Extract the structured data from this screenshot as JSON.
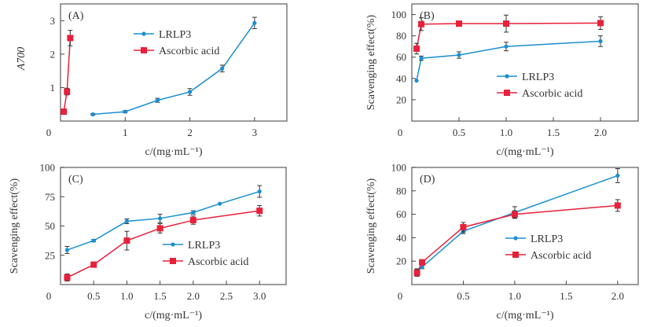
{
  "chart_data": [
    {
      "type": "line",
      "panel": "(A)",
      "xlabel": "c/(mg·mL⁻¹)",
      "ylabel": "A700",
      "xlim": [
        0,
        3.5
      ],
      "ylim": [
        0,
        3.5
      ],
      "xticks": [
        1,
        2,
        3
      ],
      "xtick_labels": [
        "1",
        "2",
        "3"
      ],
      "yticks": [
        1,
        2,
        3
      ],
      "ytick_labels": [
        "1",
        "2",
        "3"
      ],
      "origin_label": "0",
      "legend_position": "top-center",
      "series": [
        {
          "name": "LRLP3",
          "color": "#1a8fd0",
          "marker": "diamond",
          "x": [
            0.5,
            1.0,
            1.5,
            2.0,
            2.5,
            3.0
          ],
          "y": [
            0.2,
            0.28,
            0.62,
            0.87,
            1.57,
            2.93
          ],
          "err": [
            0.02,
            0.03,
            0.06,
            0.1,
            0.1,
            0.17
          ]
        },
        {
          "name": "Ascorbic acid",
          "color": "#e8203a",
          "marker": "square",
          "x": [
            0.05,
            0.1,
            0.15
          ],
          "y": [
            0.28,
            0.88,
            2.48
          ],
          "err": [
            0.02,
            0.1,
            0.23
          ]
        }
      ]
    },
    {
      "type": "line",
      "panel": "(B)",
      "xlabel": "c/(mg·mL⁻¹)",
      "ylabel": "Scavenging effect(%)",
      "xlim": [
        0,
        2.4
      ],
      "ylim": [
        0,
        110
      ],
      "xticks": [
        0.5,
        1.0,
        1.5,
        2.0
      ],
      "xtick_labels": [
        "0.5",
        "1.0",
        "1.5",
        "2.0"
      ],
      "yticks": [
        20,
        40,
        60,
        80,
        100
      ],
      "ytick_labels": [
        "20",
        "40",
        "60",
        "80",
        "100"
      ],
      "origin_label": "0",
      "legend_position": "center-right",
      "series": [
        {
          "name": "LRLP3",
          "color": "#1a8fd0",
          "marker": "diamond",
          "x": [
            0.05,
            0.1,
            0.5,
            1.0,
            2.0
          ],
          "y": [
            38,
            59,
            62,
            70,
            75
          ],
          "err": [
            0,
            2,
            3,
            4,
            5
          ]
        },
        {
          "name": "Ascorbic acid",
          "color": "#e8203a",
          "marker": "square",
          "x": [
            0.05,
            0.1,
            0.5,
            1.0,
            2.0
          ],
          "y": [
            68,
            91,
            91.5,
            91.5,
            92
          ],
          "err": [
            5,
            6,
            2,
            8,
            6
          ]
        }
      ]
    },
    {
      "type": "line",
      "panel": "(C)",
      "xlabel": "c/(mg·mL⁻¹)",
      "ylabel": "Scavenging effect(%)",
      "xlim": [
        0,
        3.4
      ],
      "ylim": [
        0,
        100
      ],
      "xticks": [
        0.5,
        1.0,
        1.5,
        2.0,
        2.5,
        3.0
      ],
      "xtick_labels": [
        "0.5",
        "1.0",
        "1.5",
        "2.0",
        "2.5",
        "3.0"
      ],
      "yticks": [
        25,
        50,
        75,
        100
      ],
      "ytick_labels": [
        "25",
        "50",
        "75",
        "100"
      ],
      "origin_label": "0",
      "legend_position": "center-right",
      "series": [
        {
          "name": "LRLP3",
          "color": "#1a8fd0",
          "marker": "diamond",
          "x": [
            0.1,
            0.5,
            1.0,
            1.5,
            2.0,
            2.4,
            3.0
          ],
          "y": [
            29.5,
            37.5,
            54,
            56.5,
            61.5,
            69,
            79.5
          ],
          "err": [
            3,
            1,
            2,
            3.5,
            1.5,
            0,
            5
          ]
        },
        {
          "name": "Ascorbic acid",
          "color": "#e8203a",
          "marker": "square",
          "x": [
            0.1,
            0.5,
            1.0,
            1.5,
            2.0,
            3.0
          ],
          "y": [
            6,
            17,
            37.5,
            48,
            55,
            63
          ],
          "err": [
            3,
            1,
            8,
            4,
            3.5,
            4.5
          ]
        }
      ]
    },
    {
      "type": "line",
      "panel": "(D)",
      "xlabel": "c/(mg·mL⁻¹)",
      "ylabel": "Scavenging effect(%)",
      "xlim": [
        0,
        2.2
      ],
      "ylim": [
        0,
        100
      ],
      "xticks": [
        0.5,
        1.0,
        1.5,
        2.0
      ],
      "xtick_labels": [
        "0.5",
        "1.0",
        "1.5",
        "2.0"
      ],
      "yticks": [
        20,
        40,
        60,
        80,
        100
      ],
      "ytick_labels": [
        "20",
        "40",
        "60",
        "80",
        "100"
      ],
      "origin_label": "0",
      "legend_position": "center-right",
      "series": [
        {
          "name": "LRLP3",
          "color": "#1a8fd0",
          "marker": "diamond",
          "x": [
            0.05,
            0.1,
            0.5,
            1.0,
            2.0
          ],
          "y": [
            12,
            15,
            45.5,
            61.5,
            93
          ],
          "err": [
            1.5,
            1.5,
            2,
            5,
            6
          ]
        },
        {
          "name": "Ascorbic acid",
          "color": "#e8203a",
          "marker": "square",
          "x": [
            0.05,
            0.1,
            0.5,
            1.0,
            2.0
          ],
          "y": [
            10,
            19,
            49,
            60,
            67.5
          ],
          "err": [
            3,
            1,
            4,
            3,
            5
          ]
        }
      ]
    }
  ]
}
